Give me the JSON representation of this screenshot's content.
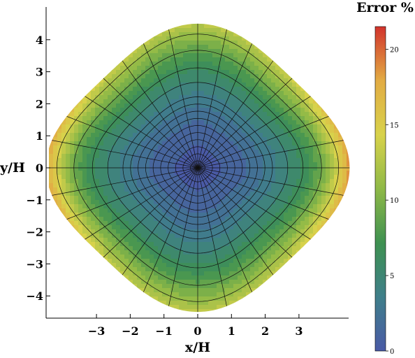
{
  "chart_data": {
    "type": "heatmap",
    "title": "",
    "xlabel": "x/H",
    "ylabel": "y/H",
    "x_ticks": [
      -3,
      -2,
      -1,
      0,
      1,
      2,
      3
    ],
    "x_tick_labels": [
      "−3",
      "−2",
      "−1",
      "0",
      "1",
      "2",
      "3"
    ],
    "y_ticks": [
      4,
      3,
      2,
      1,
      0,
      -1,
      -2,
      -3,
      -4
    ],
    "y_tick_labels": [
      "4",
      "3",
      "2",
      "1",
      "0",
      "−1",
      "−2",
      "−3",
      "−4"
    ],
    "xlim": [
      -4.5,
      4.5
    ],
    "ylim": [
      -4.6,
      4.6
    ],
    "domain_shape": "rounded diamond, |x|+|y| <= 4.5 approx, grid on",
    "colorbar": {
      "title": "Error %",
      "range": [
        0,
        21.5
      ],
      "ticks": [
        0,
        5,
        10,
        15,
        20
      ],
      "tick_labels": [
        "0",
        "5",
        "10",
        "15",
        "20"
      ],
      "colormap": [
        "#4a5aa6",
        "#3f7f8a",
        "#3e9151",
        "#8fb947",
        "#d8d24b",
        "#e2ac44",
        "#d2332c"
      ]
    },
    "samples": [
      {
        "x": 0,
        "y": 0,
        "value": 0.5
      },
      {
        "x": 0,
        "y": 1.5,
        "value": 2.5
      },
      {
        "x": 0,
        "y": 3,
        "value": 8
      },
      {
        "x": 0,
        "y": 4.3,
        "value": 12
      },
      {
        "x": 1.5,
        "y": 0,
        "value": 3
      },
      {
        "x": 2.5,
        "y": 0,
        "value": 8
      },
      {
        "x": 3.4,
        "y": 0,
        "value": 14
      },
      {
        "x": 4.2,
        "y": 0,
        "value": 21
      },
      {
        "x": -4.2,
        "y": 0,
        "value": 21
      },
      {
        "x": 2,
        "y": 2,
        "value": 12
      },
      {
        "x": 3.4,
        "y": 1.2,
        "value": 16
      }
    ]
  }
}
